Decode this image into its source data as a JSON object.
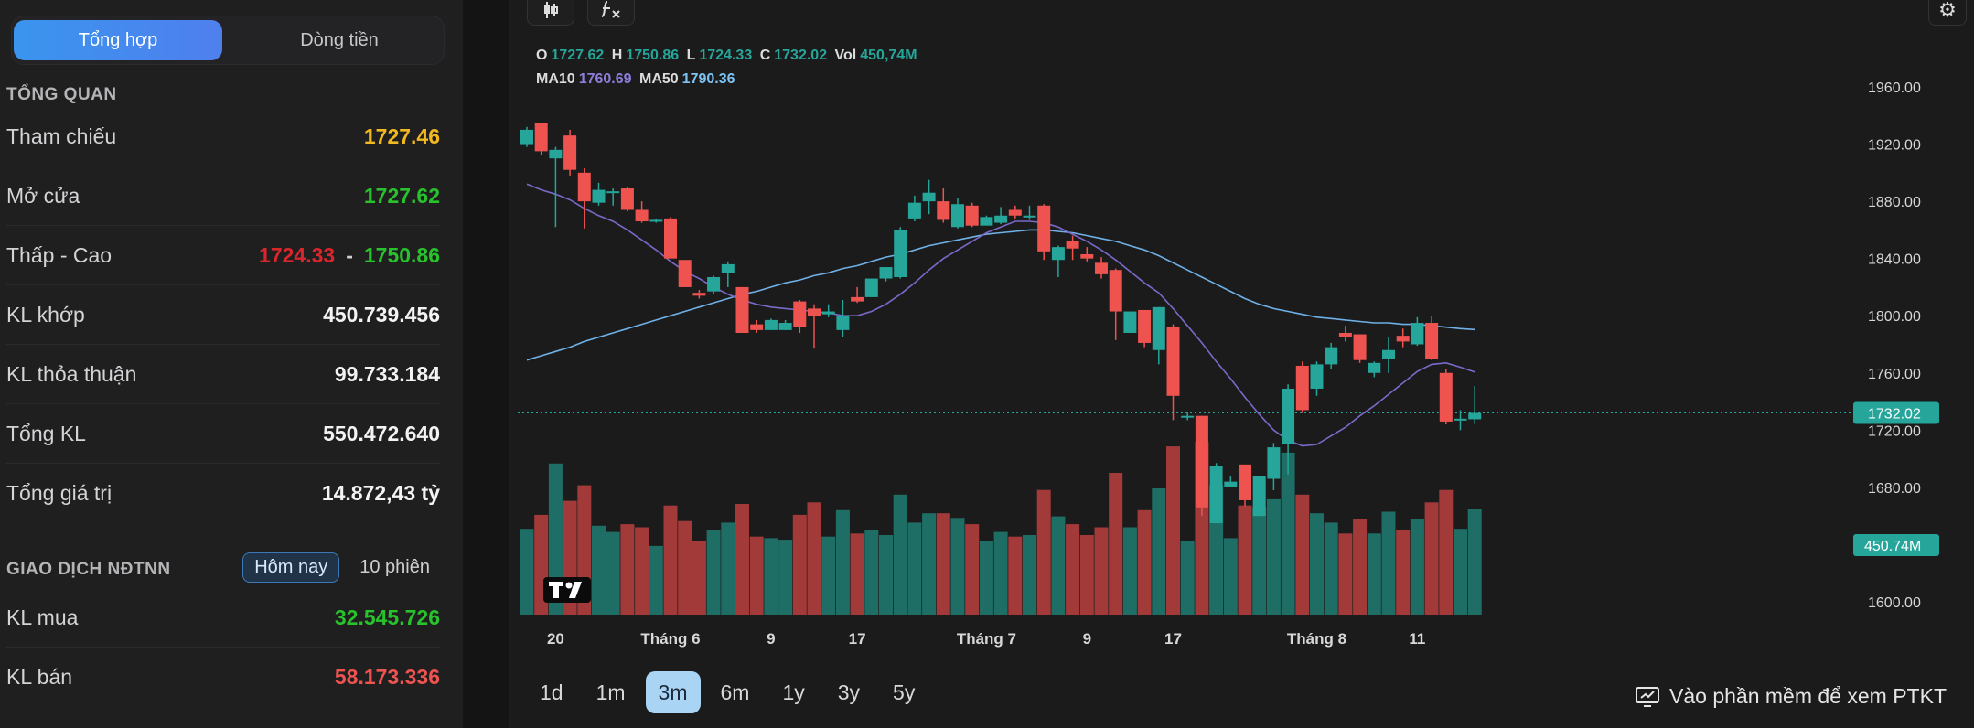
{
  "tabs": {
    "active": "Tổng hợp",
    "other": "Dòng tiền"
  },
  "overview": {
    "title": "TỔNG QUAN",
    "rows": [
      {
        "label": "Tham chiếu",
        "value": "1727.46"
      },
      {
        "label": "Mở cửa",
        "value": "1727.62"
      },
      {
        "label": "Thấp - Cao",
        "low": "1724.33",
        "high": "1750.86"
      },
      {
        "label": "KL khớp",
        "value": "450.739.456"
      },
      {
        "label": "KL thỏa thuận",
        "value": "99.733.184"
      },
      {
        "label": "Tổng KL",
        "value": "550.472.640"
      },
      {
        "label": "Tổng giá trị",
        "value": "14.872,43 tỷ"
      }
    ]
  },
  "foreign": {
    "title": "GIAO DỊCH NĐTNN",
    "pill_today": "Hôm nay",
    "pill_10": "10 phiên",
    "rows": [
      {
        "label": "KL mua",
        "value": "32.545.726"
      },
      {
        "label": "KL bán",
        "value": "58.173.336"
      }
    ]
  },
  "legend": {
    "o_label": "O",
    "o": "1727.62",
    "h_label": "H",
    "h": "1750.86",
    "l_label": "L",
    "l": "1724.33",
    "c_label": "C",
    "c": "1732.02",
    "vol_label": "Vol",
    "vol": "450,74M",
    "ma10_label": "MA10",
    "ma10": "1760.69",
    "ma50_label": "MA50",
    "ma50": "1790.36"
  },
  "price_tag": "1732.02",
  "volume_tag": "450.74M",
  "ranges": [
    "1d",
    "1m",
    "3m",
    "6m",
    "1y",
    "3y",
    "5y"
  ],
  "active_range": "3m",
  "ptkt_label": "Vào phần mềm để xem PTKT",
  "colors": {
    "up": "#26a69a",
    "down": "#ef5350",
    "ma10": "#7b68c8",
    "ma50": "#6fb0e6",
    "accent": "#3a95ee"
  },
  "chart_data": {
    "type": "candlestick",
    "y_ticks": [
      "1960.00",
      "1920.00",
      "1880.00",
      "1840.00",
      "1800.00",
      "1760.00",
      "1720.00",
      "1680.00",
      "1640.00",
      "1600.00"
    ],
    "ylim": [
      1600,
      1960
    ],
    "x_labels": [
      {
        "index": 2,
        "label": "20"
      },
      {
        "index": 10,
        "label": "Tháng 6"
      },
      {
        "index": 17,
        "label": "9"
      },
      {
        "index": 23,
        "label": "17"
      },
      {
        "index": 32,
        "label": "Tháng 7"
      },
      {
        "index": 39,
        "label": "9"
      },
      {
        "index": 45,
        "label": "17"
      },
      {
        "index": 55,
        "label": "Tháng 8"
      },
      {
        "index": 62,
        "label": "11"
      }
    ],
    "candles": [
      [
        1920,
        1932,
        1918,
        1930
      ],
      [
        1935,
        1935,
        1912,
        1915
      ],
      [
        1910,
        1918,
        1862,
        1916
      ],
      [
        1926,
        1930,
        1898,
        1902
      ],
      [
        1900,
        1903,
        1861,
        1880
      ],
      [
        1879,
        1893,
        1877,
        1888
      ],
      [
        1887,
        1889,
        1877,
        1887
      ],
      [
        1889,
        1890,
        1873,
        1874
      ],
      [
        1874,
        1880,
        1865,
        1866
      ],
      [
        1867,
        1868,
        1865,
        1867
      ],
      [
        1868,
        1869,
        1840,
        1840
      ],
      [
        1839,
        1839,
        1820,
        1820
      ],
      [
        1816,
        1818,
        1812,
        1814
      ],
      [
        1817,
        1828,
        1815,
        1827
      ],
      [
        1830,
        1838,
        1820,
        1836
      ],
      [
        1820,
        1820,
        1790,
        1788
      ],
      [
        1794,
        1797,
        1788,
        1790
      ],
      [
        1790,
        1798,
        1790,
        1797
      ],
      [
        1790,
        1797,
        1790,
        1795
      ],
      [
        1810,
        1811,
        1788,
        1792
      ],
      [
        1805,
        1808,
        1777,
        1800
      ],
      [
        1801,
        1808,
        1799,
        1803
      ],
      [
        1790,
        1811,
        1785,
        1800
      ],
      [
        1813,
        1820,
        1809,
        1810
      ],
      [
        1813,
        1826,
        1813,
        1826
      ],
      [
        1826,
        1834,
        1824,
        1834
      ],
      [
        1827,
        1862,
        1826,
        1860
      ],
      [
        1868,
        1884,
        1866,
        1879
      ],
      [
        1880,
        1895,
        1871,
        1886
      ],
      [
        1880,
        1889,
        1865,
        1867
      ],
      [
        1862,
        1882,
        1861,
        1878
      ],
      [
        1877,
        1879,
        1862,
        1863
      ],
      [
        1863,
        1870,
        1864,
        1869
      ],
      [
        1865,
        1876,
        1864,
        1870
      ],
      [
        1874,
        1877,
        1868,
        1870
      ],
      [
        1869,
        1877,
        1867,
        1870
      ],
      [
        1877,
        1878,
        1839,
        1845
      ],
      [
        1839,
        1849,
        1827,
        1848
      ],
      [
        1852,
        1856,
        1839,
        1847
      ],
      [
        1843,
        1848,
        1838,
        1840
      ],
      [
        1837,
        1841,
        1826,
        1829
      ],
      [
        1832,
        1833,
        1783,
        1803
      ],
      [
        1788,
        1803,
        1788,
        1803
      ],
      [
        1804,
        1804,
        1778,
        1781
      ],
      [
        1776,
        1806,
        1766,
        1806
      ],
      [
        1792,
        1794,
        1727,
        1744
      ],
      [
        1730,
        1733,
        1727,
        1730
      ],
      [
        1730,
        1730,
        1660,
        1666
      ],
      [
        1655,
        1697,
        1655,
        1695
      ],
      [
        1680,
        1688,
        1680,
        1684
      ],
      [
        1696,
        1696,
        1667,
        1671
      ],
      [
        1660,
        1688,
        1660,
        1688
      ],
      [
        1686,
        1711,
        1678,
        1708
      ],
      [
        1710,
        1752,
        1689,
        1749
      ],
      [
        1765,
        1768,
        1732,
        1734
      ],
      [
        1749,
        1768,
        1744,
        1766
      ],
      [
        1766,
        1781,
        1763,
        1778
      ],
      [
        1788,
        1793,
        1782,
        1785
      ],
      [
        1787,
        1787,
        1767,
        1769
      ],
      [
        1760,
        1768,
        1757,
        1767
      ],
      [
        1770,
        1785,
        1760,
        1776
      ],
      [
        1786,
        1791,
        1778,
        1782
      ],
      [
        1780,
        1799,
        1779,
        1795
      ],
      [
        1795,
        1800,
        1769,
        1770
      ],
      [
        1760,
        1763,
        1724,
        1726
      ],
      [
        1727,
        1734,
        1720,
        1728
      ],
      [
        1727.62,
        1750.86,
        1724.33,
        1732.02
      ]
    ],
    "ma10": [
      1892,
      1888,
      1885,
      1881,
      1875,
      1870,
      1866,
      1860,
      1853,
      1846,
      1838,
      1831,
      1826,
      1820,
      1815,
      1811,
      1808,
      1806,
      1805,
      1804,
      1803,
      1802,
      1800,
      1800,
      1803,
      1808,
      1815,
      1823,
      1832,
      1840,
      1846,
      1852,
      1858,
      1862,
      1866,
      1866,
      1865,
      1862,
      1857,
      1852,
      1846,
      1839,
      1831,
      1823,
      1816,
      1805,
      1793,
      1781,
      1768,
      1756,
      1743,
      1731,
      1720,
      1713,
      1709,
      1710,
      1716,
      1722,
      1730,
      1737,
      1745,
      1753,
      1761,
      1766,
      1767,
      1764,
      1760.69
    ],
    "ma50": [
      1769,
      1772,
      1775,
      1778,
      1782,
      1785,
      1788,
      1791,
      1794,
      1797,
      1800,
      1803,
      1806,
      1809,
      1812,
      1815,
      1817,
      1820,
      1823,
      1825,
      1828,
      1830,
      1833,
      1835,
      1838,
      1841,
      1843,
      1846,
      1849,
      1851,
      1853,
      1855,
      1857,
      1858,
      1859,
      1860,
      1860,
      1859,
      1858,
      1856,
      1854,
      1852,
      1849,
      1846,
      1842,
      1837,
      1832,
      1827,
      1822,
      1817,
      1812,
      1808,
      1805,
      1803,
      1801,
      1799,
      1798,
      1797,
      1796,
      1795,
      1795,
      1794,
      1794,
      1793,
      1792,
      1791,
      1790.36
    ]
  }
}
